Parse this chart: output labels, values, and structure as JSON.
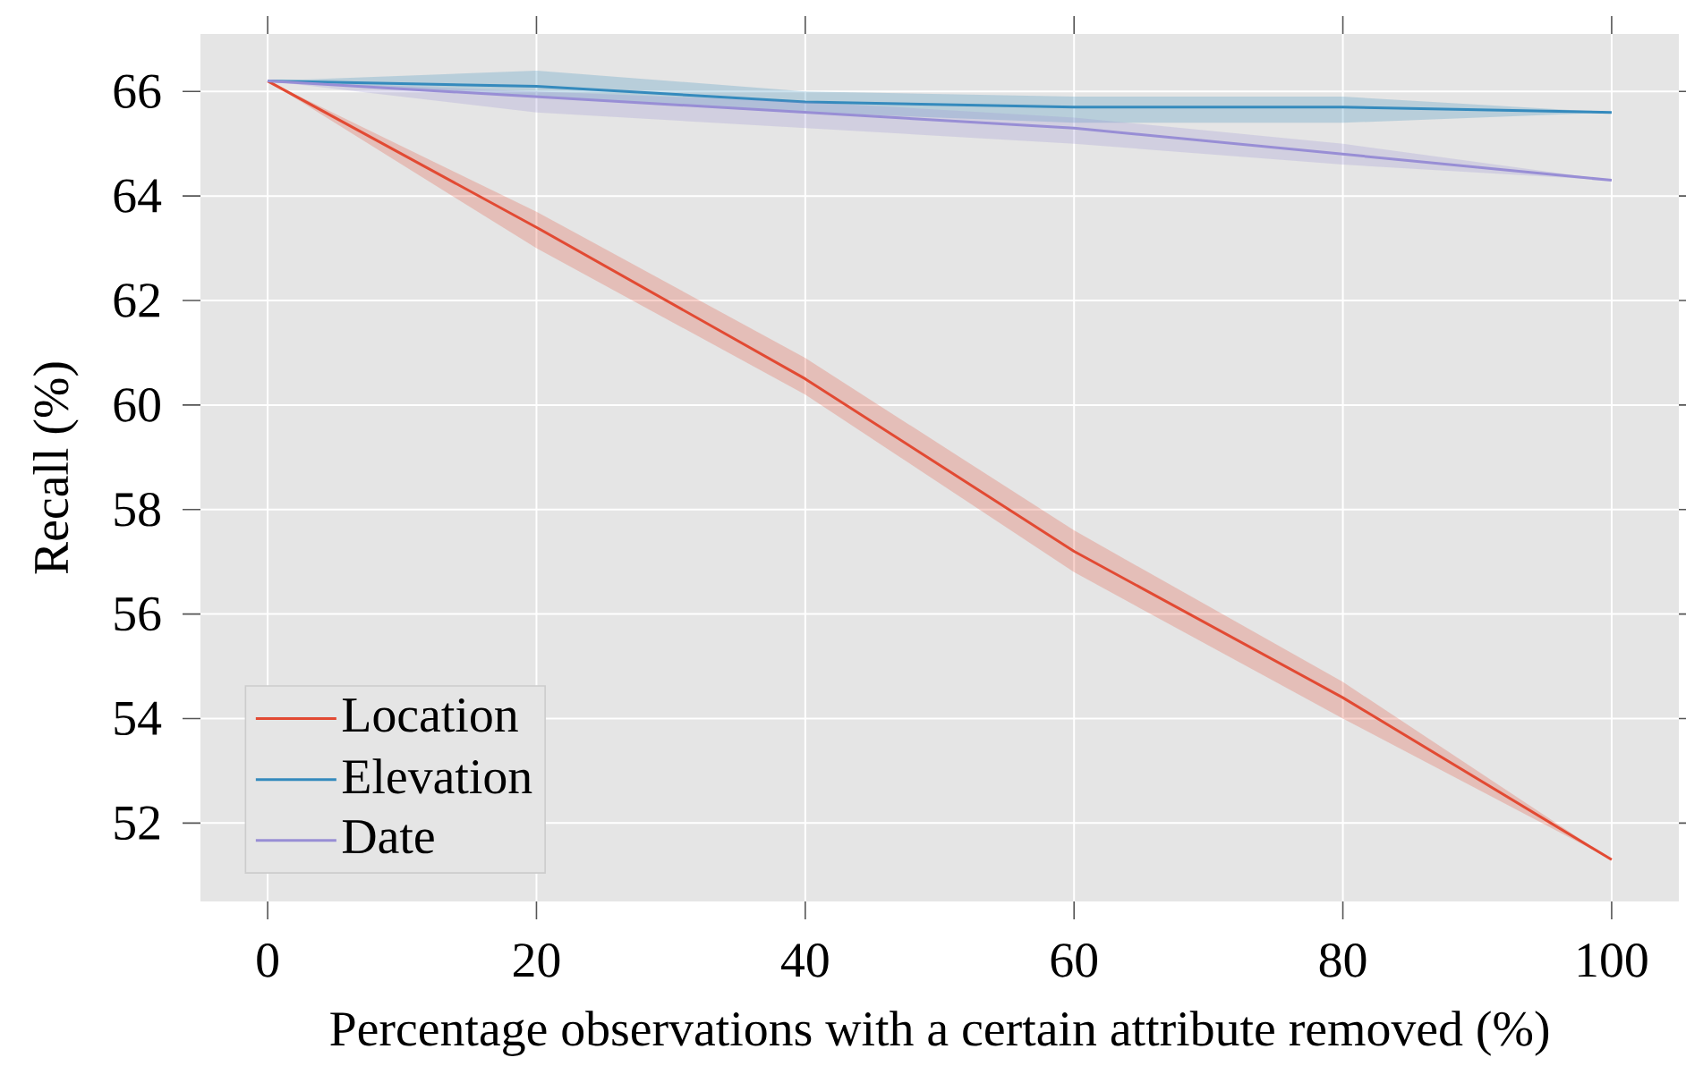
{
  "chart_data": {
    "type": "line",
    "xlabel": "Percentage observations with a certain attribute removed (%)",
    "ylabel": "Recall (%)",
    "x": [
      0,
      20,
      40,
      60,
      80,
      100
    ],
    "series": [
      {
        "name": "Location",
        "color": "#e24a33",
        "values": [
          66.2,
          63.4,
          60.5,
          57.2,
          54.4,
          51.3
        ],
        "lower": [
          66.2,
          63.0,
          60.2,
          56.8,
          54.0,
          51.3
        ],
        "upper": [
          66.2,
          63.7,
          60.9,
          57.6,
          54.7,
          51.3
        ]
      },
      {
        "name": "Elevation",
        "color": "#348abd",
        "values": [
          66.2,
          66.1,
          65.8,
          65.7,
          65.7,
          65.6
        ],
        "lower": [
          66.2,
          65.9,
          65.6,
          65.4,
          65.4,
          65.6
        ],
        "upper": [
          66.2,
          66.4,
          66.0,
          65.9,
          65.9,
          65.6
        ]
      },
      {
        "name": "Date",
        "color": "#988ed5",
        "values": [
          66.2,
          65.9,
          65.6,
          65.3,
          64.8,
          64.3
        ],
        "lower": [
          66.2,
          65.6,
          65.3,
          65.0,
          64.6,
          64.3
        ],
        "upper": [
          66.2,
          66.0,
          65.8,
          65.5,
          65.0,
          64.3
        ]
      }
    ],
    "xlim": [
      -5,
      105
    ],
    "ylim": [
      50.5,
      67.1
    ],
    "xticks": [
      0,
      20,
      40,
      60,
      80,
      100
    ],
    "yticks": [
      52,
      54,
      56,
      58,
      60,
      62,
      64,
      66
    ],
    "grid": true,
    "legend": "bottom left",
    "marker": "none",
    "line_style": "solid"
  }
}
